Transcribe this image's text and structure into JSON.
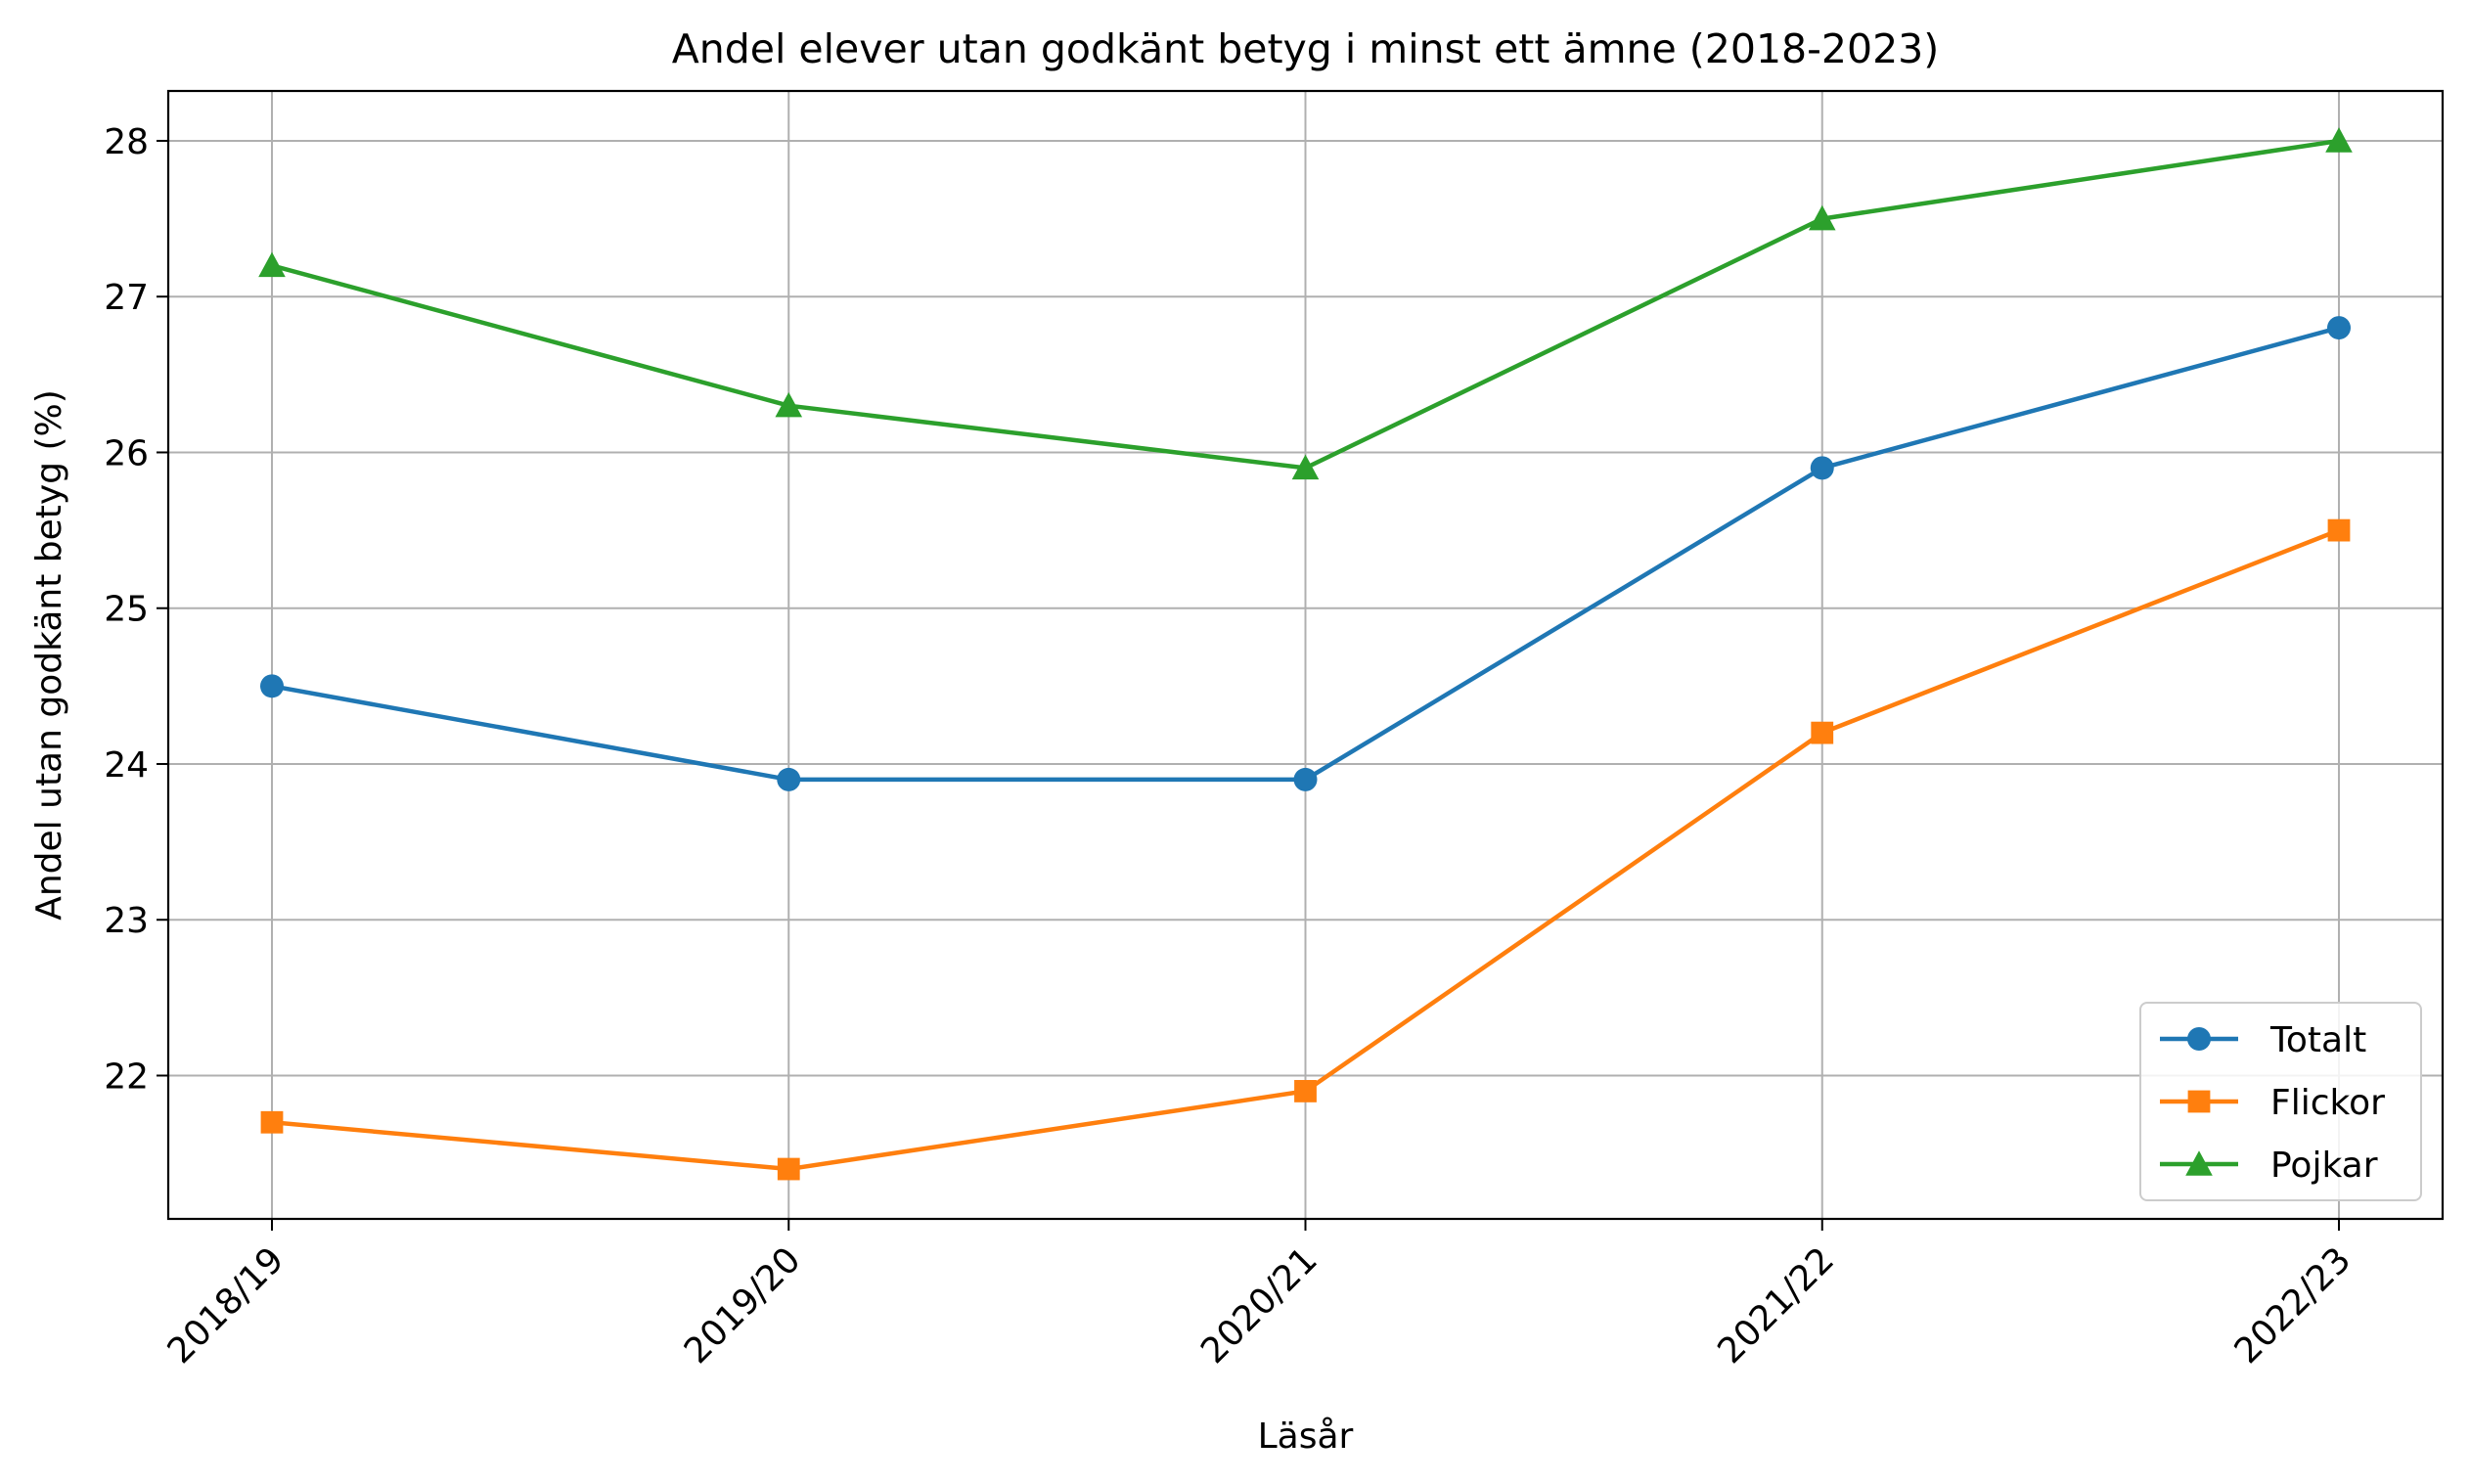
{
  "chart_data": {
    "type": "line",
    "title": "Andel elever utan godkänt betyg i minst ett ämne (2018-2023)",
    "xlabel": "Läsår",
    "ylabel": "Andel utan godkänt betyg (%)",
    "categories": [
      "2018/19",
      "2019/20",
      "2020/21",
      "2021/22",
      "2022/23"
    ],
    "ylim": [
      21.08,
      28.32
    ],
    "yticks": [
      22,
      23,
      24,
      25,
      26,
      27,
      28
    ],
    "grid": true,
    "legend_position": "lower right",
    "series": [
      {
        "name": "Totalt",
        "color": "#1f77b4",
        "marker": "circle",
        "values": [
          24.5,
          23.9,
          23.9,
          25.9,
          26.8
        ]
      },
      {
        "name": "Flickor",
        "color": "#ff7f0e",
        "marker": "square",
        "values": [
          21.7,
          21.4,
          21.9,
          24.2,
          25.5
        ]
      },
      {
        "name": "Pojkar",
        "color": "#2ca02c",
        "marker": "triangle",
        "values": [
          27.2,
          26.3,
          25.9,
          27.5,
          28.0
        ]
      }
    ]
  }
}
